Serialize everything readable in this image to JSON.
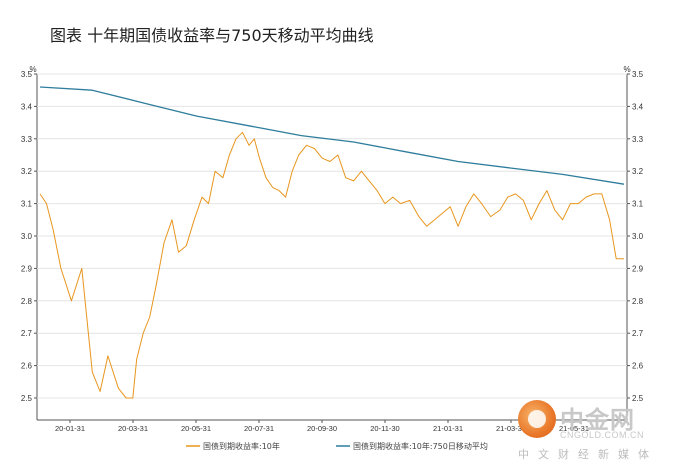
{
  "title": "图表 十年期国债收益率与750天移动平均曲线",
  "chart_data": {
    "type": "line",
    "yunit_left": "%",
    "yunit_right": "%",
    "ylim": [
      2.45,
      3.5
    ],
    "yticks": [
      "3.5",
      "3.4",
      "3.3",
      "3.2",
      "3.1",
      "3.0",
      "2.9",
      "2.8",
      "2.7",
      "2.6",
      "2.5"
    ],
    "xticks": [
      "20-01-31",
      "20-03-31",
      "20-05-31",
      "20-07-31",
      "20-09-30",
      "20-11-30",
      "21-01-31",
      "21-03-31",
      "21-05-31"
    ],
    "grid": true,
    "legend": "bottom",
    "series": [
      {
        "name": "国债到期收益率:10年",
        "color": "#e8961e",
        "x": [
          0,
          5,
          10,
          16,
          24,
          32,
          40,
          46,
          52,
          60,
          66,
          71,
          74,
          79,
          84,
          89,
          95,
          101,
          106,
          112,
          118,
          124,
          129,
          134,
          140,
          145,
          150,
          155,
          160,
          164,
          168,
          173,
          178,
          183,
          188,
          193,
          198,
          204,
          210,
          216,
          222,
          228,
          234,
          240,
          246,
          252,
          258,
          264,
          270,
          276,
          283,
          290,
          296,
          302,
          308,
          314,
          320,
          326,
          332,
          338,
          345,
          352,
          358,
          364,
          370,
          376,
          382,
          388,
          394,
          400,
          406,
          412,
          418,
          424,
          430,
          436,
          441,
          447
        ],
        "y": [
          3.13,
          3.1,
          3.02,
          2.9,
          2.8,
          2.9,
          2.58,
          2.52,
          2.63,
          2.53,
          2.5,
          2.5,
          2.62,
          2.7,
          2.75,
          2.85,
          2.98,
          3.05,
          2.95,
          2.97,
          3.05,
          3.12,
          3.1,
          3.2,
          3.18,
          3.25,
          3.3,
          3.32,
          3.28,
          3.3,
          3.24,
          3.18,
          3.15,
          3.14,
          3.12,
          3.2,
          3.25,
          3.28,
          3.27,
          3.24,
          3.23,
          3.25,
          3.18,
          3.17,
          3.2,
          3.17,
          3.14,
          3.1,
          3.12,
          3.1,
          3.11,
          3.06,
          3.03,
          3.05,
          3.07,
          3.09,
          3.03,
          3.09,
          3.13,
          3.1,
          3.06,
          3.08,
          3.12,
          3.13,
          3.11,
          3.05,
          3.1,
          3.14,
          3.08,
          3.05,
          3.1,
          3.1,
          3.12,
          3.13,
          3.13,
          3.05,
          2.93,
          2.93
        ]
      },
      {
        "name": "国债到期收益率:10年:750日移动平均",
        "color": "#2e7d9c",
        "x": [
          0,
          40,
          80,
          120,
          160,
          200,
          240,
          280,
          320,
          360,
          400,
          447
        ],
        "y": [
          3.46,
          3.45,
          3.41,
          3.37,
          3.34,
          3.31,
          3.29,
          3.26,
          3.23,
          3.21,
          3.19,
          3.16
        ]
      }
    ]
  },
  "watermark": {
    "brand_cn": "中金网",
    "brand_url": "CNGOLD.COM.CN",
    "slogan": "中文财经新媒体"
  }
}
